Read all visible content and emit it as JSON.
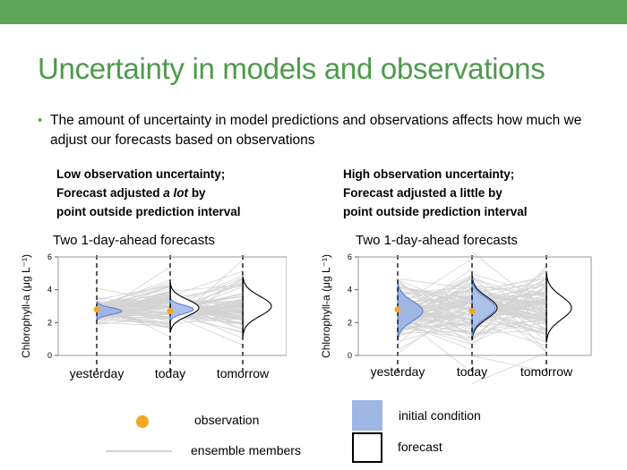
{
  "slide": {
    "title": "Uncertainty in models and observations",
    "bullet": "The amount of uncertainty in model predictions and observations affects how much we adjust our forecasts based on observations",
    "colors": {
      "bar": "#5fa55a",
      "title": "#4e9a4b",
      "observation": "#f5a623",
      "initial_condition": "#9fb6e4",
      "ensemble": "#d3d3d3"
    }
  },
  "left_heading": {
    "line1": "Low observation uncertainty;",
    "line2_pre": "Forecast adjusted ",
    "line2_em": "a lot",
    "line2_post": " by",
    "line3": "point outside prediction interval"
  },
  "right_heading": {
    "line1": "High observation uncertainty;",
    "line2": "Forecast adjusted a little by",
    "line3": "point outside prediction interval"
  },
  "chart_data": [
    {
      "type": "line",
      "title": "Two 1-day-ahead forecasts",
      "ylabel": "Chlorophyll-a (μg L⁻¹)",
      "categories": [
        "yesterday",
        "today",
        "tomorrow"
      ],
      "yticks": [
        "0",
        "2",
        "4",
        "6"
      ],
      "ylim": [
        0,
        6
      ],
      "ensemble_members": 100,
      "observations": [
        2.8,
        2.7,
        null
      ],
      "initial_condition": {
        "day": "yesterday",
        "center": 2.7,
        "spread": 0.4
      },
      "forecast_distributions": [
        {
          "day": "today",
          "center": 2.9,
          "spread": 1.0
        },
        {
          "day": "tomorrow",
          "center": 3.0,
          "spread": 1.2
        }
      ],
      "adjusted_initial_condition": {
        "day": "today",
        "center": 2.8,
        "spread": 0.5
      },
      "grid": false
    },
    {
      "type": "line",
      "title": "Two 1-day-ahead forecasts",
      "ylabel": "Chlorophyll-a (μg L⁻¹)",
      "categories": [
        "yesterday",
        "today",
        "tomorrow"
      ],
      "yticks": [
        "0",
        "2",
        "4",
        "6"
      ],
      "ylim": [
        0,
        6
      ],
      "ensemble_members": 100,
      "observations": [
        2.8,
        2.7,
        null
      ],
      "initial_condition": {
        "day": "yesterday",
        "center": 2.7,
        "spread": 1.2
      },
      "forecast_distributions": [
        {
          "day": "today",
          "center": 2.9,
          "spread": 1.3
        },
        {
          "day": "tomorrow",
          "center": 2.9,
          "spread": 1.4
        }
      ],
      "adjusted_initial_condition": {
        "day": "today",
        "center": 2.9,
        "spread": 1.2
      },
      "grid": false
    }
  ],
  "legend": {
    "observation": "observation",
    "ensemble": "ensemble members",
    "initial_condition": "initial condition",
    "forecast": "forecast"
  }
}
